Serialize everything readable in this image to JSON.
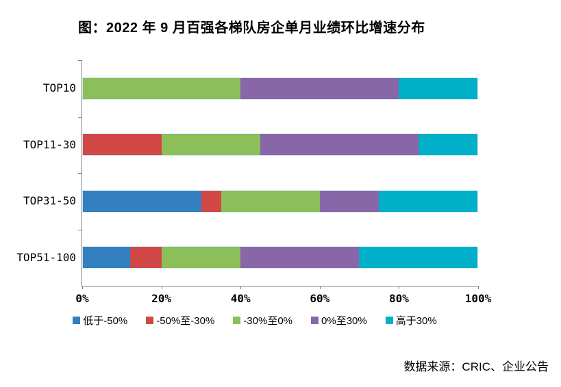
{
  "figure": {
    "title": "图：2022 年 9 月百强各梯队房企单月业绩环比增速分布",
    "source": "数据来源：CRIC、企业公告"
  },
  "chart_data": {
    "type": "bar",
    "orientation": "horizontal",
    "stacked": true,
    "unit": "%",
    "categories": [
      "TOP10",
      "TOP11-30",
      "TOP31-50",
      "TOP51-100"
    ],
    "series": [
      {
        "name": "低于-50%",
        "color": "#337FC0",
        "values": [
          0,
          0,
          30,
          12
        ]
      },
      {
        "name": "-50%至-30%",
        "color": "#D14846",
        "values": [
          0,
          20,
          5,
          8
        ]
      },
      {
        "name": "-30%至0%",
        "color": "#8CBE5A",
        "values": [
          40,
          25,
          25,
          20
        ]
      },
      {
        "name": "0%至30%",
        "color": "#8966A8",
        "values": [
          40,
          40,
          15,
          30
        ]
      },
      {
        "name": "高于30%",
        "color": "#00AFC8",
        "values": [
          20,
          15,
          25,
          30
        ]
      }
    ],
    "x_ticks": [
      "0%",
      "20%",
      "40%",
      "60%",
      "80%",
      "100%"
    ],
    "xlim": [
      0,
      100
    ],
    "legend_position": "bottom",
    "grid": false,
    "axis_color": "#808080"
  }
}
